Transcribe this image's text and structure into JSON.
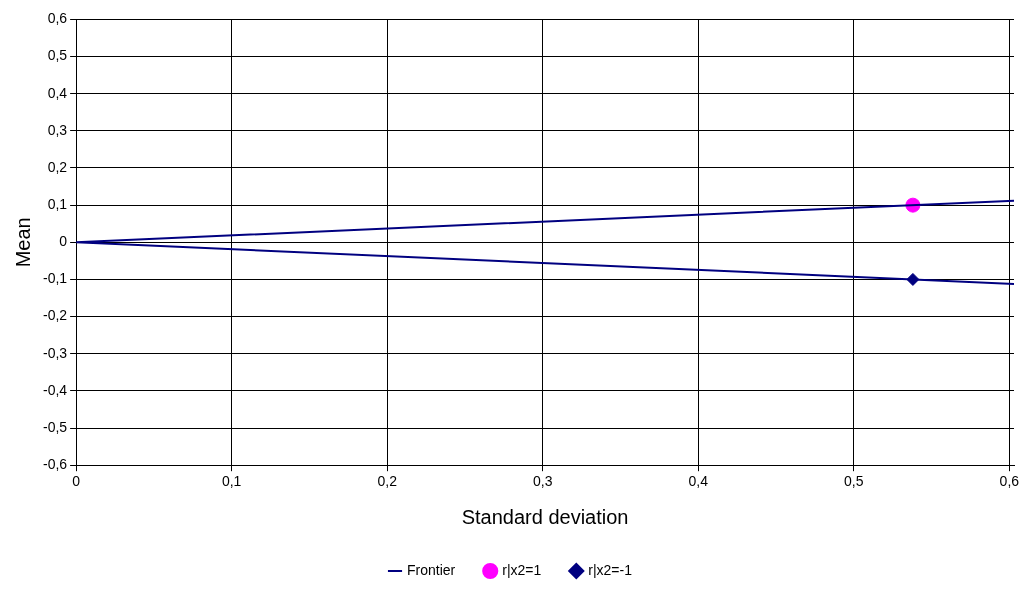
{
  "chart_data": {
    "type": "scatter",
    "xlabel": "Standard deviation",
    "ylabel": "Mean",
    "xlim": [
      0,
      0.603
    ],
    "ylim": [
      -0.6,
      0.6
    ],
    "xticks": [
      0,
      {
        "value": 0.1,
        "label": "0,1"
      },
      {
        "value": 0.2,
        "label": "0,2"
      },
      {
        "value": 0.3,
        "label": "0,3"
      },
      {
        "value": 0.4,
        "label": "0,4"
      },
      {
        "value": 0.5,
        "label": "0,5"
      },
      {
        "value": 0.6,
        "label": "0,6"
      }
    ],
    "yticks": [
      {
        "value": -0.6,
        "label": "-0,6"
      },
      {
        "value": -0.5,
        "label": "-0,5"
      },
      {
        "value": -0.4,
        "label": "-0,4"
      },
      {
        "value": -0.3,
        "label": "-0,3"
      },
      {
        "value": -0.2,
        "label": "-0,2"
      },
      {
        "value": -0.1,
        "label": "-0,1"
      },
      0,
      {
        "value": 0.1,
        "label": "0,1"
      },
      {
        "value": 0.2,
        "label": "0,2"
      },
      {
        "value": 0.3,
        "label": "0,3"
      },
      {
        "value": 0.4,
        "label": "0,4"
      },
      {
        "value": 0.5,
        "label": "0,5"
      },
      {
        "value": 0.6,
        "label": "0,6"
      }
    ],
    "grid": true,
    "legend": "bottom",
    "series": [
      {
        "name": "Frontier",
        "type": "line",
        "color": "#000080",
        "marker": "none",
        "x": [
          0.603,
          0,
          0.603
        ],
        "values": [
          -0.112,
          0,
          0.112
        ]
      },
      {
        "name": "r|x2=1",
        "color": "#ff00ff",
        "marker": "circle",
        "x": [
          0.538
        ],
        "values": [
          0.1
        ]
      },
      {
        "name": "r|x2=-1",
        "color": "#000080",
        "marker": "diamond",
        "x": [
          0.538
        ],
        "values": [
          -0.1
        ]
      }
    ]
  }
}
